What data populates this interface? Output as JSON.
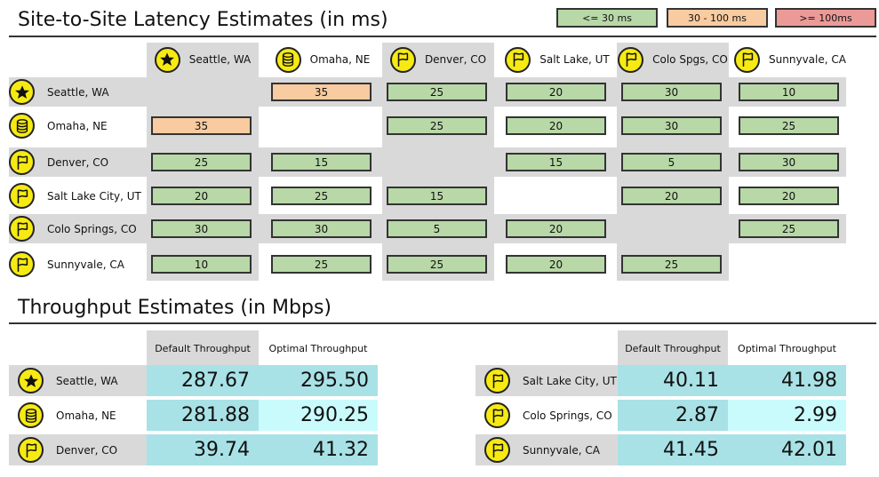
{
  "latency": {
    "title": "Site-to-Site Latency Estimates (in ms)",
    "legend": [
      {
        "label": "<= 30 ms",
        "color": "#b8d8a7"
      },
      {
        "label": "30 - 100 ms",
        "color": "#f8cba0"
      },
      {
        "label": ">= 100ms",
        "color": "#ec9a98"
      }
    ],
    "columns": [
      {
        "label": "Seattle, WA",
        "icon": "star-icon"
      },
      {
        "label": "Omaha, NE",
        "icon": "database-icon"
      },
      {
        "label": "Denver, CO",
        "icon": "flag-icon"
      },
      {
        "label": "Salt Lake, UT",
        "icon": "flag-icon"
      },
      {
        "label": "Colo Spgs, CO",
        "icon": "flag-icon"
      },
      {
        "label": "Sunnyvale, CA",
        "icon": "flag-icon"
      }
    ],
    "rows": [
      {
        "label": "Seattle, WA",
        "icon": "star-icon",
        "values": [
          "",
          "35",
          "25",
          "20",
          "30",
          "10"
        ]
      },
      {
        "label": "Omaha, NE",
        "icon": "database-icon",
        "values": [
          "35",
          "",
          "25",
          "20",
          "30",
          "25"
        ]
      },
      {
        "label": "Denver, CO",
        "icon": "flag-icon",
        "values": [
          "25",
          "15",
          "",
          "15",
          "5",
          "30"
        ]
      },
      {
        "label": "Salt Lake City, UT",
        "icon": "flag-icon",
        "values": [
          "20",
          "25",
          "15",
          "",
          "20",
          "20"
        ]
      },
      {
        "label": "Colo Springs, CO",
        "icon": "flag-icon",
        "values": [
          "30",
          "30",
          "5",
          "20",
          "",
          "25"
        ]
      },
      {
        "label": "Sunnyvale, CA",
        "icon": "flag-icon",
        "values": [
          "10",
          "25",
          "25",
          "20",
          "25",
          ""
        ]
      }
    ]
  },
  "throughput": {
    "title": "Throughput Estimates (in Mbps)",
    "col_default": "Default Throughput",
    "col_optimal": "Optimal Throughput",
    "left": [
      {
        "label": "Seattle, WA",
        "icon": "star-icon",
        "default": "287.67",
        "optimal": "295.50"
      },
      {
        "label": "Omaha, NE",
        "icon": "database-icon",
        "default": "281.88",
        "optimal": "290.25"
      },
      {
        "label": "Denver, CO",
        "icon": "flag-icon",
        "default": "39.74",
        "optimal": "41.32"
      }
    ],
    "right": [
      {
        "label": "Salt Lake City, UT",
        "icon": "flag-icon",
        "default": "40.11",
        "optimal": "41.98"
      },
      {
        "label": "Colo Springs, CO",
        "icon": "flag-icon",
        "default": "2.87",
        "optimal": "2.99"
      },
      {
        "label": "Sunnyvale, CA",
        "icon": "flag-icon",
        "default": "41.45",
        "optimal": "42.01"
      }
    ]
  }
}
